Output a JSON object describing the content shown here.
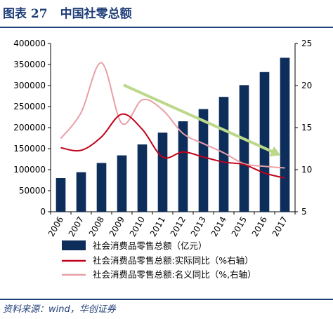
{
  "figure": {
    "label": "图表 27",
    "title": "中国社零总额",
    "source": "资料来源：wind，华创证券"
  },
  "colors": {
    "bars": "#0d2d5a",
    "real_growth": "#c0001a",
    "nominal_growth": "#e8a0a6",
    "trend_arrow": "#bcd88a",
    "rule": "#1f3e78"
  },
  "chart_data": {
    "type": "bar",
    "categories": [
      "2006",
      "2007",
      "2008",
      "2009",
      "2010",
      "2011",
      "2012",
      "2013",
      "2014",
      "2015",
      "2016",
      "2017"
    ],
    "series": [
      {
        "name": "社会消费品零售总额（亿元）",
        "type": "bar",
        "axis": "left",
        "values": [
          80000,
          94000,
          116000,
          134000,
          160000,
          188000,
          215000,
          244000,
          273000,
          301000,
          332000,
          366000
        ]
      },
      {
        "name": "社会消费品零售总额:实际同比（%右轴）",
        "type": "line",
        "axis": "right",
        "values": [
          12.6,
          12.3,
          13.9,
          16.6,
          14.8,
          11.5,
          12.1,
          11.5,
          10.9,
          10.6,
          9.6,
          9.0
        ]
      },
      {
        "name": "社会消费品零售总额:名义同比（%,右轴）",
        "type": "line",
        "axis": "right",
        "values": [
          13.7,
          16.8,
          22.7,
          15.5,
          18.3,
          17.1,
          14.3,
          13.1,
          12.0,
          10.7,
          10.4,
          10.2
        ]
      }
    ],
    "y_left": {
      "min": 0,
      "max": 400000,
      "ticks": [
        "0",
        "50000",
        "100000",
        "150000",
        "200000",
        "250000",
        "300000",
        "350000",
        "400000"
      ]
    },
    "y_right": {
      "min": 5,
      "max": 25,
      "ticks": [
        "5",
        "10",
        "15",
        "20",
        "25"
      ]
    },
    "annotations": [
      {
        "type": "trend-arrow",
        "direction": "down",
        "from_x": "2009",
        "from_y_right": 20,
        "to_x": "2017",
        "to_y_right": 11.7
      }
    ],
    "grid": false,
    "legend_position": "bottom"
  }
}
